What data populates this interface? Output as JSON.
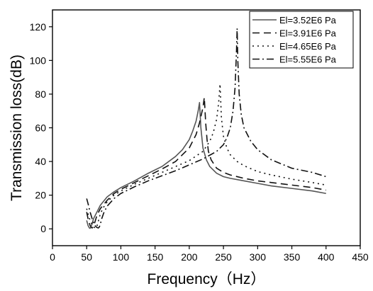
{
  "chart_data": {
    "type": "line",
    "title": "",
    "xlabel": "Frequency（Hz）",
    "ylabel": "Transmission loss(dB)",
    "xlim": [
      0,
      450
    ],
    "ylim": [
      -10,
      130
    ],
    "xticks": [
      0,
      50,
      100,
      150,
      200,
      250,
      300,
      350,
      400,
      450
    ],
    "yticks": [
      0,
      20,
      40,
      60,
      80,
      100,
      120
    ],
    "grid": false,
    "legend_position": "top-right",
    "series": [
      {
        "name": "El=3.52E6 Pa",
        "color": "#555555",
        "dash": "solid",
        "x": [
          50,
          52,
          54,
          55,
          56,
          58,
          60,
          65,
          70,
          80,
          90,
          100,
          120,
          140,
          160,
          180,
          190,
          200,
          205,
          210,
          213,
          215,
          217,
          220,
          225,
          230,
          240,
          250,
          260,
          280,
          300,
          320,
          350,
          380,
          400
        ],
        "y": [
          5,
          2,
          0.5,
          0.3,
          1,
          3,
          6,
          10,
          14,
          19,
          22,
          24.5,
          28.5,
          33,
          37,
          43,
          47,
          53,
          58,
          64,
          70,
          75,
          60,
          48,
          41,
          37,
          33,
          31,
          30,
          28.5,
          27,
          25.5,
          24,
          22.5,
          21
        ]
      },
      {
        "name": "El=3.91E6 Pa",
        "color": "#111111",
        "dash": "10,6",
        "x": [
          50,
          52,
          55,
          57,
          58,
          60,
          62,
          65,
          70,
          80,
          90,
          100,
          120,
          140,
          160,
          180,
          200,
          210,
          215,
          220,
          222,
          224,
          226,
          228,
          232,
          240,
          250,
          260,
          280,
          300,
          320,
          350,
          380,
          400
        ],
        "y": [
          10,
          6,
          2,
          0.8,
          0.5,
          1.5,
          4,
          8,
          12,
          17,
          21,
          23.5,
          27.5,
          31.5,
          35.5,
          40,
          48,
          56,
          63,
          72,
          78,
          63,
          53,
          46,
          41,
          36,
          33.5,
          32,
          30,
          28.5,
          27.5,
          26,
          24.5,
          23
        ]
      },
      {
        "name": "El=4.65E6 Pa",
        "color": "#111111",
        "dash": "2,5",
        "x": [
          50,
          52,
          55,
          58,
          60,
          62,
          63,
          64,
          65,
          66,
          68,
          70,
          75,
          80,
          90,
          100,
          120,
          140,
          160,
          180,
          200,
          220,
          230,
          235,
          240,
          243,
          245,
          247,
          250,
          255,
          260,
          270,
          280,
          300,
          320,
          350,
          380,
          400
        ],
        "y": [
          12,
          9,
          5,
          2.5,
          1.2,
          0.6,
          0.4,
          0.6,
          1.5,
          3,
          6,
          9,
          13,
          16,
          20,
          22.5,
          26.5,
          30,
          33.5,
          37,
          40.5,
          46,
          52,
          57,
          65,
          75,
          86,
          66,
          55,
          48,
          44,
          40,
          37.5,
          34,
          32,
          29.5,
          27.5,
          26
        ]
      },
      {
        "name": "El=5.55E6 Pa",
        "color": "#111111",
        "dash": "10,4,2,4",
        "x": [
          50,
          52,
          55,
          58,
          60,
          63,
          65,
          67,
          68,
          69,
          70,
          72,
          75,
          80,
          90,
          100,
          120,
          140,
          160,
          180,
          200,
          220,
          240,
          250,
          255,
          260,
          264,
          267,
          269,
          270,
          271,
          273,
          276,
          280,
          290,
          300,
          320,
          350,
          380,
          400
        ],
        "y": [
          18,
          15,
          10,
          6,
          3.5,
          1.5,
          0.8,
          0.5,
          0.8,
          1.6,
          2.8,
          6,
          9.5,
          13.5,
          18,
          21,
          25,
          28.5,
          31.5,
          34.5,
          38,
          41.5,
          46,
          50,
          54,
          60,
          70,
          84,
          105,
          119,
          100,
          80,
          68,
          60,
          52,
          47,
          41,
          36,
          33.5,
          31
        ]
      }
    ]
  }
}
